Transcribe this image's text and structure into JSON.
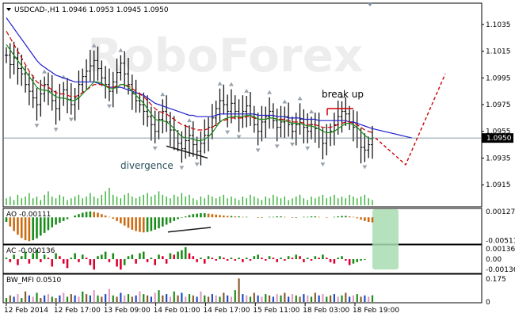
{
  "header": {
    "symbol_line": "USDCAD-,H1  1.0946 1.0953 1.0945 1.0950"
  },
  "watermark": "RoboForex",
  "annotations": {
    "breakout": "break up",
    "divergence": "divergence"
  },
  "panels": {
    "ao_label": "AO -0.00111",
    "ac_label": "AC -0.000136",
    "mfi_label": "BW_MFI 0.0510"
  },
  "colors": {
    "price_bars": "#000000",
    "ma_blue": "#1f1fcc",
    "ma_red": "#cc0000",
    "ma_green": "#1a8c1a",
    "volume": "#22aa22",
    "ao_up": "#1a8c1a",
    "ao_down": "#cc6a10",
    "ac_up": "#1a8c1a",
    "ac_down": "#dd0033",
    "forecast": "#cc0000",
    "highlight": "#a8dcb0",
    "current_price_bg": "#000000"
  },
  "chart_data": {
    "type": "line",
    "symbol": "USDCAD-",
    "timeframe": "H1",
    "current_price": "1.0950",
    "price_axis_ticks": [
      "1.1035",
      "1.1015",
      "1.0995",
      "1.0975",
      "1.0955",
      "1.0935",
      "1.0915"
    ],
    "x_tick_labels": [
      "12 Feb 2014",
      "12 Feb 17:00",
      "13 Feb 09:00",
      "14 Feb 01:00",
      "14 Feb 17:00",
      "15 Feb 11:00",
      "18 Feb 03:00",
      "18 Feb 19:00"
    ],
    "ao_axis_ticks": [
      "0.00127",
      "-0.00511"
    ],
    "ac_axis_ticks": [
      "0.00136",
      "0.00",
      "-0.00136"
    ],
    "mfi_axis_ticks": [
      "0.175",
      "0"
    ],
    "ylim": [
      1.0905,
      1.1045
    ],
    "ao_ylim": [
      -0.0055,
      0.0016
    ],
    "ac_ylim": [
      -0.0017,
      0.0017
    ],
    "mfi_ylim": [
      0,
      0.2
    ],
    "closes": [
      1.1012,
      1.1005,
      1.101,
      1.1002,
      1.0998,
      1.099,
      1.0985,
      1.098,
      1.0975,
      1.0983,
      1.099,
      1.0985,
      1.0978,
      1.0972,
      1.098,
      1.0986,
      1.0979,
      1.0975,
      1.098,
      1.099,
      1.0996,
      1.1,
      1.1004,
      1.1008,
      1.1002,
      1.0995,
      1.099,
      1.0985,
      1.0992,
      1.0999,
      1.1006,
      1.0998,
      1.099,
      1.0983,
      1.0978,
      1.0975,
      1.097,
      1.0966,
      1.096,
      1.0955,
      1.0964,
      1.097,
      1.0962,
      1.0956,
      1.095,
      1.0946,
      1.0942,
      1.0948,
      1.0952,
      1.0945,
      1.094,
      1.0946,
      1.0952,
      1.0958,
      1.0965,
      1.0972,
      1.0978,
      1.0975,
      1.097,
      1.0976,
      1.097,
      1.0965,
      1.097,
      1.0974,
      1.0968,
      1.096,
      1.0955,
      1.0962,
      1.0966,
      1.097,
      1.0963,
      1.0958,
      1.0962,
      1.0966,
      1.096,
      1.0955,
      1.096,
      1.0964,
      1.0958,
      1.0955,
      1.096,
      1.0957,
      1.095,
      1.0946,
      1.095,
      1.0955,
      1.096,
      1.0966,
      1.097,
      1.0968,
      1.0962,
      1.0958,
      1.095,
      1.0943,
      1.0941,
      1.0945,
      1.095
    ],
    "ma_blue": [
      1.104,
      1.1036,
      1.1032,
      1.1028,
      1.1024,
      1.102,
      1.1016,
      1.1012,
      1.1008,
      1.1005,
      1.1003,
      1.1001,
      1.0999,
      1.0997,
      1.0996,
      1.0995,
      1.0994,
      1.0993,
      1.0992,
      1.0992,
      1.0992,
      1.0992,
      1.0992,
      1.0992,
      1.0991,
      1.099,
      1.0989,
      1.0988,
      1.0988,
      1.0988,
      1.0988,
      1.0987,
      1.0986,
      1.0985,
      1.0984,
      1.0983,
      1.0982,
      1.098,
      1.0978,
      1.0976,
      1.0975,
      1.0974,
      1.0973,
      1.0972,
      1.0971,
      1.097,
      1.0969,
      1.0968,
      1.0967,
      1.0967,
      1.0966,
      1.0966,
      1.0966,
      1.0966,
      1.0966,
      1.0967,
      1.0968,
      1.0968,
      1.0968,
      1.0968,
      1.0968,
      1.0968,
      1.0968,
      1.0968,
      1.0968,
      1.0968,
      1.0967,
      1.0967,
      1.0967,
      1.0967,
      1.0967,
      1.0966,
      1.0966,
      1.0966,
      1.0965,
      1.0965,
      1.0965,
      1.0965,
      1.0964,
      1.0964,
      1.0964,
      1.0964,
      1.0963,
      1.0963,
      1.0963,
      1.0963,
      1.0963,
      1.0963,
      1.0963,
      1.0963,
      1.0962,
      1.0962,
      1.0961,
      1.096,
      1.0959,
      1.0958,
      1.0957
    ],
    "ma_red": [
      1.103,
      1.1025,
      1.102,
      1.1015,
      1.101,
      1.1005,
      1.1,
      1.0996,
      1.0992,
      1.099,
      1.0989,
      1.0988,
      1.0986,
      1.0984,
      1.0983,
      1.0983,
      1.0982,
      1.0981,
      1.0981,
      1.0982,
      1.0984,
      1.0986,
      1.0988,
      1.099,
      1.099,
      1.099,
      1.0989,
      1.0988,
      1.0988,
      1.0989,
      1.099,
      1.099,
      1.0989,
      1.0987,
      1.0985,
      1.0983,
      1.0981,
      1.0978,
      1.0975,
      1.0972,
      1.097,
      1.0969,
      1.0968,
      1.0966,
      1.0964,
      1.0962,
      1.096,
      1.0959,
      1.0958,
      1.0957,
      1.0956,
      1.0956,
      1.0956,
      1.0957,
      1.0958,
      1.096,
      1.0962,
      1.0963,
      1.0964,
      1.0965,
      1.0965,
      1.0965,
      1.0965,
      1.0966,
      1.0966,
      1.0965,
      1.0964,
      1.0964,
      1.0964,
      1.0965,
      1.0965,
      1.0964,
      1.0964,
      1.0964,
      1.0963,
      1.0962,
      1.0962,
      1.0962,
      1.0961,
      1.096,
      1.096,
      1.096,
      1.0959,
      1.0958,
      1.0958,
      1.0958,
      1.0959,
      1.096,
      1.0961,
      1.0962,
      1.0962,
      1.0961,
      1.096,
      1.0958,
      1.0956,
      1.0955,
      1.0954
    ],
    "ma_green": [
      1.102,
      1.1016,
      1.1012,
      1.1008,
      1.1004,
      1.1,
      1.0996,
      1.0992,
      1.0988,
      1.0986,
      1.0986,
      1.0985,
      1.0983,
      1.0981,
      1.098,
      1.098,
      1.0979,
      1.0978,
      1.0978,
      1.098,
      1.0983,
      1.0986,
      1.0989,
      1.0992,
      1.0992,
      1.0991,
      1.0989,
      1.0987,
      1.0987,
      1.0988,
      1.099,
      1.099,
      1.0988,
      1.0985,
      1.0982,
      1.0979,
      1.0976,
      1.0972,
      1.0968,
      1.0964,
      1.0963,
      1.0963,
      1.0962,
      1.096,
      1.0957,
      1.0954,
      1.0951,
      1.095,
      1.095,
      1.0949,
      1.0948,
      1.0948,
      1.0949,
      1.0951,
      1.0954,
      1.0958,
      1.0962,
      1.0964,
      1.0965,
      1.0966,
      1.0966,
      1.0966,
      1.0966,
      1.0967,
      1.0967,
      1.0966,
      1.0964,
      1.0964,
      1.0964,
      1.0965,
      1.0965,
      1.0964,
      1.0963,
      1.0963,
      1.0962,
      1.0961,
      1.0961,
      1.0961,
      1.096,
      1.0959,
      1.0959,
      1.0958,
      1.0957,
      1.0955,
      1.0954,
      1.0954,
      1.0955,
      1.0957,
      1.0959,
      1.0961,
      1.0961,
      1.096,
      1.0958,
      1.0955,
      1.0952,
      1.095,
      1.0949
    ],
    "volume": [
      0.4,
      0.5,
      0.3,
      0.6,
      0.4,
      0.5,
      0.7,
      0.4,
      0.5,
      0.3,
      0.6,
      0.8,
      0.5,
      0.4,
      0.6,
      0.5,
      0.3,
      0.4,
      0.5,
      0.6,
      0.4,
      0.5,
      0.7,
      0.5,
      0.4,
      0.6,
      0.8,
      1.0,
      0.6,
      0.5,
      0.4,
      0.6,
      0.7,
      0.5,
      0.4,
      0.5,
      0.6,
      0.7,
      0.5,
      0.6,
      0.8,
      0.6,
      0.5,
      0.4,
      0.6,
      0.5,
      0.7,
      0.5,
      0.6,
      0.4,
      0.3,
      0.5,
      0.4,
      0.6,
      0.5,
      0.4,
      0.5,
      0.6,
      0.4,
      0.5,
      0.4,
      0.3,
      0.5,
      0.4,
      0.6,
      0.5,
      0.4,
      0.3,
      0.5,
      0.4,
      0.6,
      0.5,
      0.4,
      0.5,
      0.3,
      0.4,
      0.5,
      0.6,
      0.4,
      0.3,
      0.5,
      0.4,
      0.5,
      0.6,
      0.4,
      0.5,
      0.6,
      0.4,
      0.5,
      0.4,
      0.6,
      0.5,
      0.4,
      0.5,
      0.6,
      0.4,
      0.3
    ],
    "ao": [
      -0.001,
      -0.002,
      -0.003,
      -0.0038,
      -0.0045,
      -0.005,
      -0.0052,
      -0.005,
      -0.0046,
      -0.004,
      -0.0034,
      -0.0028,
      -0.0022,
      -0.0016,
      -0.0012,
      -0.0008,
      -0.0004,
      0.0,
      0.0004,
      0.0007,
      0.001,
      0.0012,
      0.0013,
      0.0012,
      0.001,
      0.0007,
      0.0004,
      0.0001,
      -0.0003,
      -0.0008,
      -0.0013,
      -0.0018,
      -0.0023,
      -0.0027,
      -0.003,
      -0.0032,
      -0.0033,
      -0.0032,
      -0.003,
      -0.0027,
      -0.0024,
      -0.002,
      -0.0016,
      -0.0012,
      -0.0008,
      -0.0004,
      -0.0001,
      0.0002,
      0.0005,
      0.0007,
      0.0008,
      0.0009,
      0.0009,
      0.0008,
      0.0007,
      0.0006,
      0.0005,
      0.0004,
      0.0003,
      0.0003,
      0.0002,
      0.0002,
      0.0001,
      0.0001,
      0.0,
      0.0,
      -0.0001,
      -0.0001,
      0.0,
      0.0001,
      0.0001,
      0.0002,
      0.0002,
      0.0001,
      0.0,
      -0.0001,
      -0.0001,
      0.0,
      0.0001,
      0.0001,
      0.0002,
      0.0002,
      0.0001,
      0.0,
      -0.0001,
      0.0,
      0.0001,
      0.0002,
      0.0003,
      0.0003,
      0.0002,
      0.0001,
      -0.0002,
      -0.0005,
      -0.0008,
      -0.001,
      -0.0011
    ],
    "ac": [
      0.0002,
      -0.0004,
      0.0006,
      -0.0008,
      0.0004,
      0.001,
      -0.0006,
      0.0008,
      0.0012,
      -0.0004,
      0.0006,
      0.0002,
      -0.001,
      0.0008,
      0.0004,
      -0.0006,
      -0.0012,
      0.0002,
      0.0008,
      -0.0004,
      0.0006,
      0.0002,
      -0.0008,
      -0.0014,
      0.0004,
      0.0006,
      0.001,
      -0.0004,
      0.0008,
      -0.001,
      -0.0014,
      -0.0008,
      0.0004,
      0.0006,
      -0.0006,
      0.0008,
      0.001,
      -0.0004,
      0.0002,
      -0.0008,
      0.0006,
      0.0004,
      -0.0006,
      0.0008,
      0.0006,
      0.001,
      0.0012,
      0.0016,
      0.0008,
      0.0004,
      -0.0004,
      0.0002,
      -0.0006,
      0.0004,
      0.0002,
      -0.0002,
      0.0004,
      0.0002,
      -0.0002,
      0.0002,
      -0.0002,
      0.0002,
      -0.0004,
      0.0002,
      -0.0002,
      0.0004,
      0.0006,
      0.0002,
      -0.0002,
      0.0004,
      0.0002,
      -0.0004,
      0.0002,
      -0.0002,
      0.0004,
      0.0002,
      0.0006,
      0.0004,
      -0.0004,
      0.0002,
      -0.0002,
      0.0004,
      0.0002,
      0.0006,
      0.0002,
      -0.0004,
      -0.0006,
      0.0002,
      0.0004,
      -0.0002,
      -0.0008,
      -0.0006,
      -0.0004,
      -0.0002,
      -0.0001
    ],
    "mfi": [
      0.03,
      0.05,
      0.04,
      0.06,
      0.03,
      0.08,
      0.05,
      0.04,
      0.07,
      0.03,
      0.05,
      0.06,
      0.04,
      0.03,
      0.05,
      0.07,
      0.04,
      0.06,
      0.05,
      0.04,
      0.08,
      0.06,
      0.05,
      0.09,
      0.05,
      0.04,
      0.06,
      0.1,
      0.05,
      0.04,
      0.07,
      0.05,
      0.06,
      0.04,
      0.05,
      0.08,
      0.06,
      0.05,
      0.04,
      0.07,
      0.09,
      0.05,
      0.06,
      0.04,
      0.08,
      0.05,
      0.07,
      0.04,
      0.06,
      0.05,
      0.04,
      0.08,
      0.05,
      0.04,
      0.06,
      0.05,
      0.04,
      0.07,
      0.05,
      0.04,
      0.09,
      0.18,
      0.06,
      0.05,
      0.04,
      0.07,
      0.05,
      0.04,
      0.06,
      0.05,
      0.04,
      0.06,
      0.05,
      0.07,
      0.04,
      0.06,
      0.05,
      0.04,
      0.06,
      0.05,
      0.04,
      0.07,
      0.05,
      0.06,
      0.04,
      0.05,
      0.06,
      0.04,
      0.05,
      0.07,
      0.04,
      0.05,
      0.06,
      0.04,
      0.05,
      0.04,
      0.051
    ],
    "forecast": [
      [
        1.095,
        1.0938
      ],
      [
        1.093,
        1.0998
      ]
    ]
  }
}
